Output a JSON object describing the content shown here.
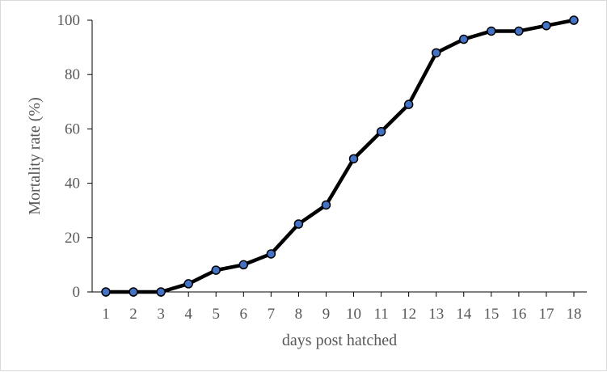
{
  "chart_data": {
    "type": "line",
    "title": "",
    "xlabel": "days post hatched",
    "ylabel": "Mortality rate (%)",
    "x": [
      "1",
      "2",
      "3",
      "4",
      "5",
      "6",
      "7",
      "8",
      "9",
      "10",
      "11",
      "12",
      "13",
      "14",
      "15",
      "16",
      "17",
      "18"
    ],
    "y_ticks": [
      "0",
      "20",
      "40",
      "60",
      "80",
      "100"
    ],
    "series": [
      {
        "values": [
          0,
          0,
          0,
          3,
          8,
          10,
          14,
          25,
          32,
          49,
          59,
          69,
          88,
          93,
          96,
          96,
          98,
          100
        ]
      }
    ],
    "ylim": [
      0,
      100
    ],
    "grid": false,
    "legend": "none",
    "colors": {
      "line": "#000000",
      "marker_fill": "#4472c4",
      "marker_stroke": "#000000",
      "axis": "#000000",
      "text": "#595959"
    }
  }
}
